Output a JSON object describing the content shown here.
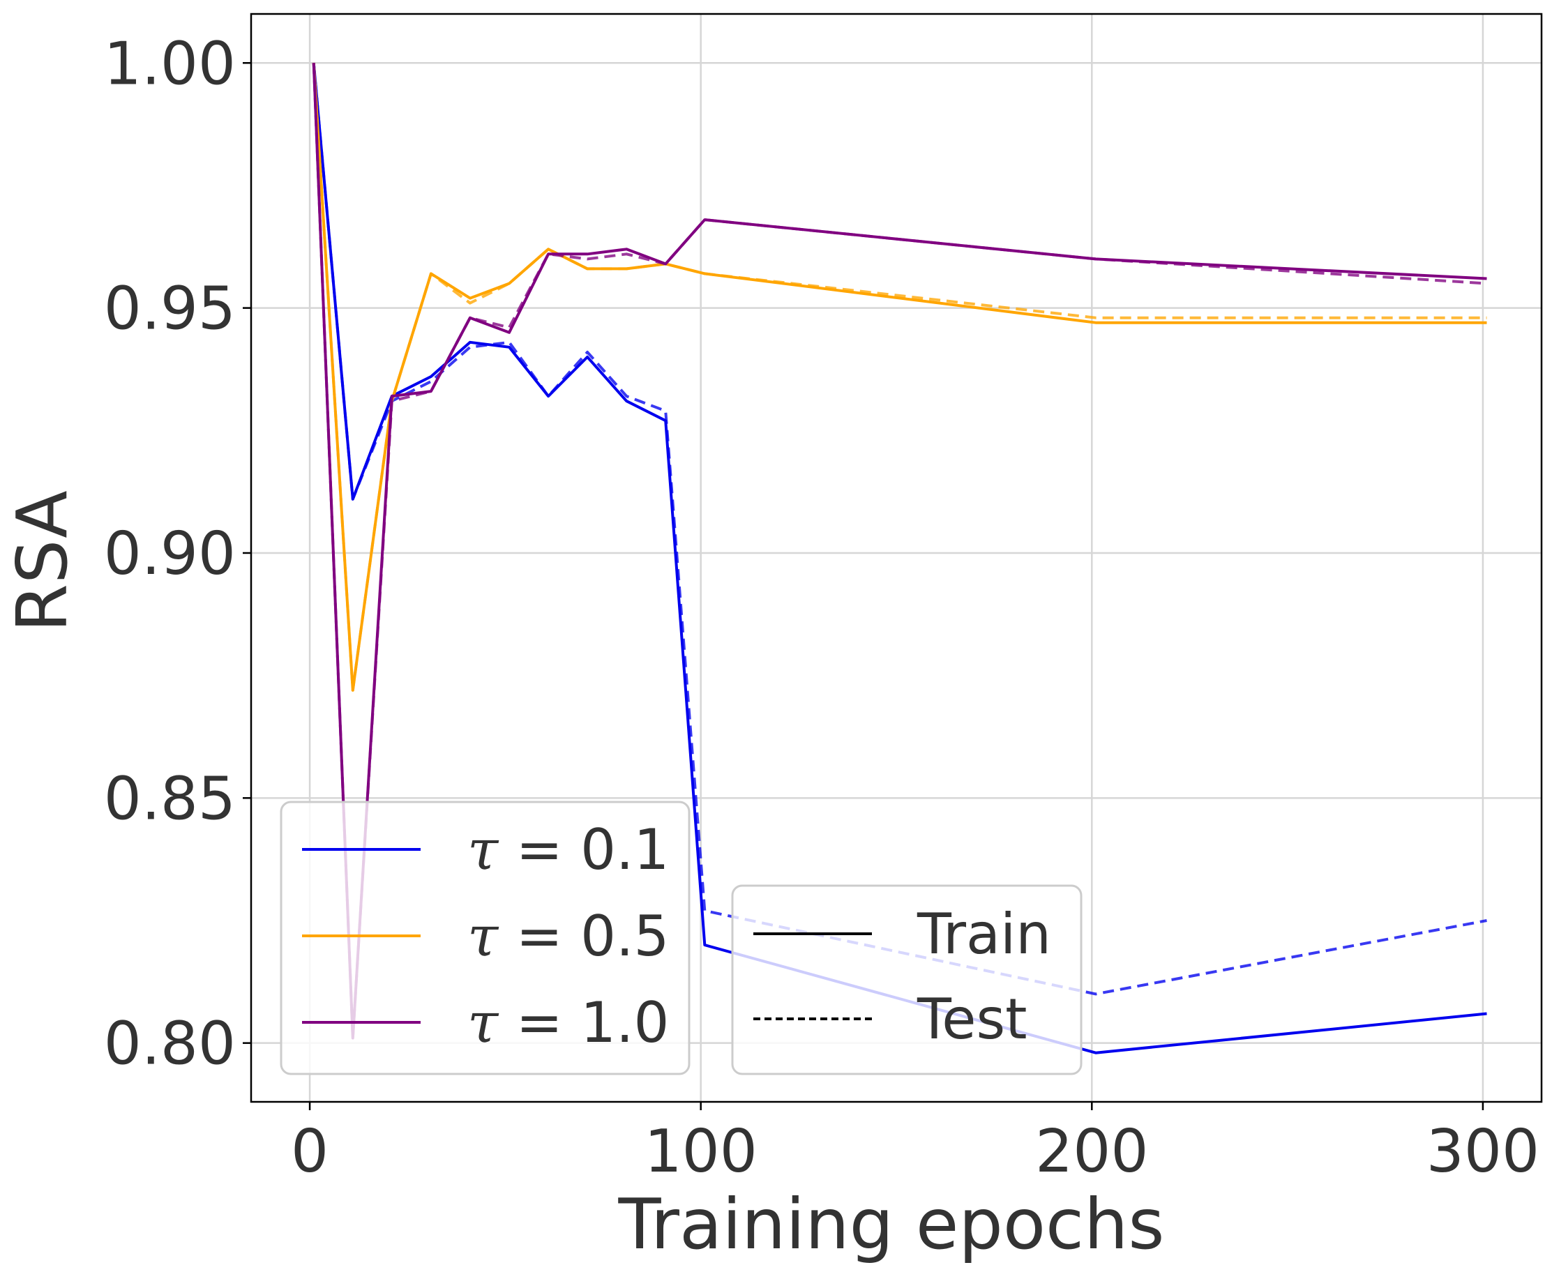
{
  "chart_data": {
    "type": "line",
    "xlabel": "Training epochs",
    "ylabel": "RSA",
    "xlim": [
      -15,
      315
    ],
    "ylim": [
      0.788,
      1.01
    ],
    "xticks": [
      0,
      100,
      200,
      300
    ],
    "xtick_labels": [
      "0",
      "100",
      "200",
      "300"
    ],
    "yticks": [
      0.8,
      0.85,
      0.9,
      0.95,
      1.0
    ],
    "ytick_labels": [
      "0.80",
      "0.85",
      "0.90",
      "0.95",
      "1.00"
    ],
    "grid": true,
    "x": [
      1,
      11,
      21,
      31,
      41,
      51,
      61,
      71,
      81,
      91,
      101,
      201,
      301
    ],
    "series": [
      {
        "name": "τ = 0.1",
        "split": "Train",
        "color": "#0000ee",
        "style": "solid",
        "values": [
          1.0,
          0.911,
          0.932,
          0.936,
          0.943,
          0.942,
          0.932,
          0.94,
          0.931,
          0.927,
          0.82,
          0.798,
          0.806
        ]
      },
      {
        "name": "τ = 0.1",
        "split": "Test",
        "color": "#0000ee",
        "style": "dashed",
        "values": [
          1.0,
          0.911,
          0.931,
          0.935,
          0.942,
          0.943,
          0.932,
          0.941,
          0.932,
          0.929,
          0.827,
          0.81,
          0.825
        ]
      },
      {
        "name": "τ = 0.5",
        "split": "Train",
        "color": "#ffa500",
        "style": "solid",
        "values": [
          1.0,
          0.872,
          0.931,
          0.957,
          0.952,
          0.955,
          0.962,
          0.958,
          0.958,
          0.959,
          0.957,
          0.947,
          0.947
        ]
      },
      {
        "name": "τ = 0.5",
        "split": "Test",
        "color": "#ffa500",
        "style": "dashed",
        "values": [
          1.0,
          0.872,
          0.931,
          0.957,
          0.951,
          0.955,
          0.962,
          0.958,
          0.958,
          0.959,
          0.957,
          0.948,
          0.948
        ]
      },
      {
        "name": "τ = 1.0",
        "split": "Train",
        "color": "#800080",
        "style": "solid",
        "values": [
          1.0,
          0.801,
          0.932,
          0.933,
          0.948,
          0.945,
          0.961,
          0.961,
          0.962,
          0.959,
          0.968,
          0.96,
          0.956
        ]
      },
      {
        "name": "τ = 1.0",
        "split": "Test",
        "color": "#800080",
        "style": "dashed",
        "values": [
          1.0,
          0.801,
          0.931,
          0.933,
          0.948,
          0.946,
          0.961,
          0.96,
          0.961,
          0.959,
          0.968,
          0.96,
          0.955
        ]
      }
    ],
    "legend_tau": [
      {
        "label": "τ = 0.1",
        "color": "#0000ee"
      },
      {
        "label": "τ = 0.5",
        "color": "#ffa500"
      },
      {
        "label": "τ = 1.0",
        "color": "#800080"
      }
    ],
    "legend_split": [
      {
        "label": "Train",
        "style": "solid"
      },
      {
        "label": "Test",
        "style": "dashed"
      }
    ],
    "legend_tau_placement": "lower-left",
    "legend_split_placement": "lower-center"
  }
}
